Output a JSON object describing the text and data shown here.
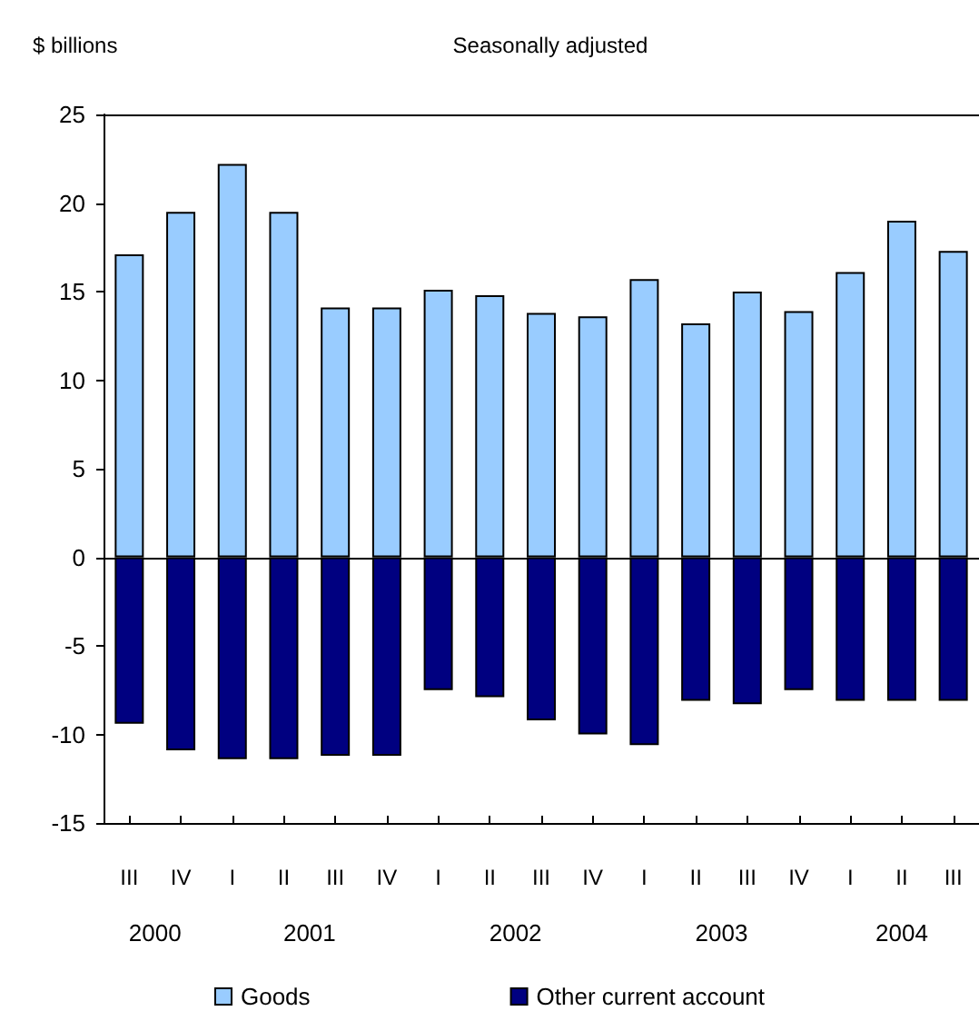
{
  "chart_data": {
    "type": "bar",
    "title": "Seasonally adjusted",
    "ylabel": "$ billions",
    "categories": [
      "III",
      "IV",
      "I",
      "II",
      "III",
      "IV",
      "I",
      "II",
      "III",
      "IV",
      "I",
      "II",
      "III",
      "IV",
      "I",
      "II",
      "III"
    ],
    "series": [
      {
        "name": "Goods",
        "color": "#99ccff",
        "values": [
          17.1,
          19.5,
          22.2,
          19.5,
          14.1,
          14.1,
          15.1,
          14.8,
          13.8,
          13.6,
          15.7,
          13.2,
          15.0,
          13.9,
          16.1,
          19.0,
          17.3
        ]
      },
      {
        "name": "Other current account",
        "color": "#000080",
        "values": [
          -9.4,
          -10.9,
          -11.4,
          -11.4,
          -11.2,
          -11.2,
          -7.5,
          -7.9,
          -9.2,
          -10.0,
          -10.6,
          -8.1,
          -8.3,
          -7.5,
          -8.1,
          -8.1,
          -8.1
        ]
      }
    ],
    "stacked": true,
    "ylim": [
      -15,
      25
    ],
    "yticks": [
      -15,
      -10,
      -5,
      0,
      5,
      10,
      15,
      20,
      25
    ],
    "legend": "bottom",
    "annotations": [
      "2000",
      "2001",
      "2002",
      "2003",
      "2004"
    ]
  }
}
